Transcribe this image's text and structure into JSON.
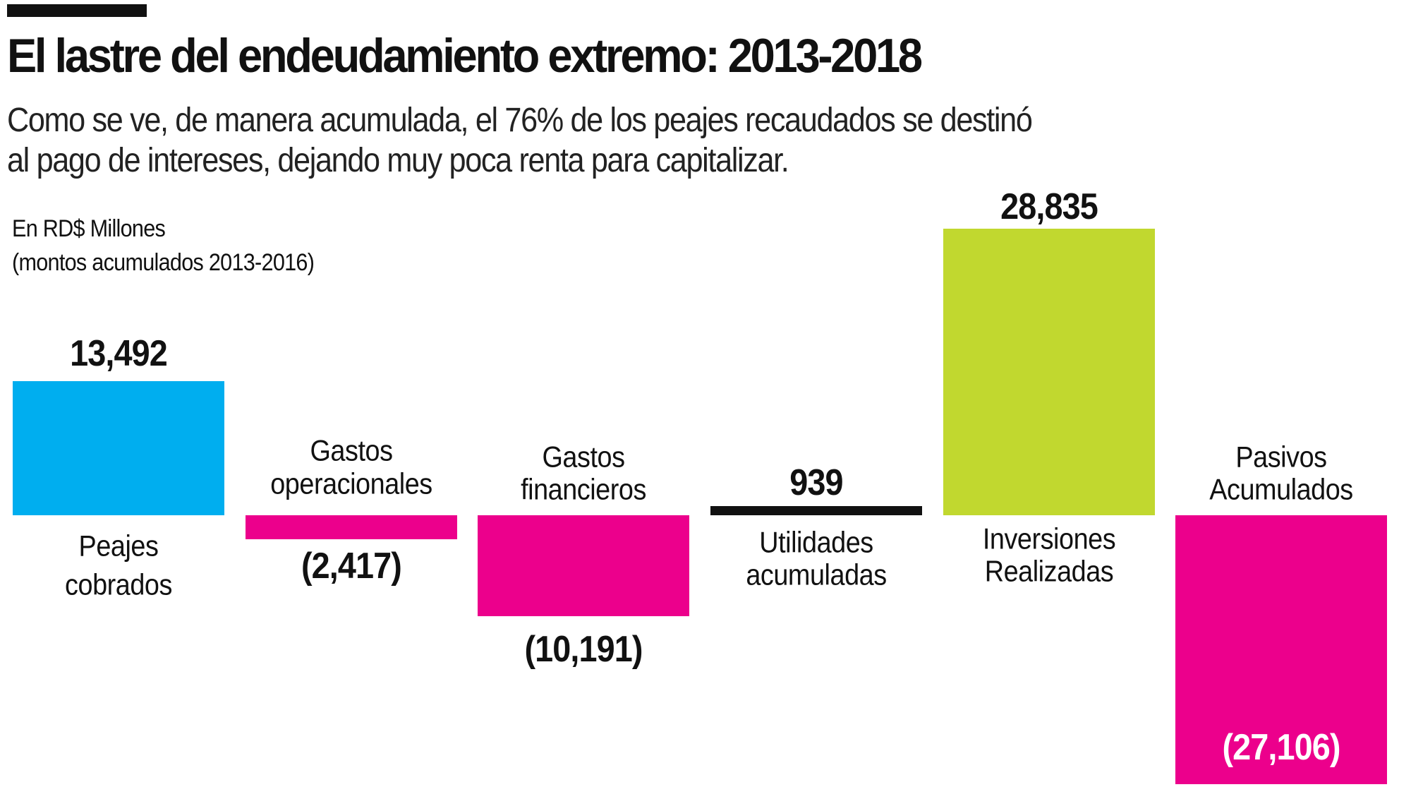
{
  "title": "El lastre del endeudamiento extremo: 2013-2018",
  "subtitle": [
    "Como se ve, de manera acumulada, el 76% de los peajes recaudados se destinó",
    "al pago de intereses, dejando muy poca renta para capitalizar."
  ],
  "units": [
    "En RD$ Millones",
    "(montos acumulados 2013-2016)"
  ],
  "chart_data": {
    "type": "bar",
    "categories": [
      [
        "Peajes",
        "cobrados"
      ],
      [
        "Gastos",
        "operacionales"
      ],
      [
        "Gastos",
        "financieros"
      ],
      [
        "Utilidades",
        "acumuladas"
      ],
      [
        "Inversiones",
        "Realizadas"
      ],
      [
        "Pasivos",
        "Acumulados"
      ]
    ],
    "values": [
      13492,
      -2417,
      -10191,
      939,
      28835,
      -27106
    ],
    "data_labels": [
      "13,492",
      "(2,417)",
      "(10,191)",
      "939",
      "28,835",
      "(27,106)"
    ],
    "colors": [
      "#00AEEF",
      "#EC008C",
      "#EC008C",
      "#111111",
      "#C1D82F",
      "#EC008C"
    ],
    "label_color_inside": "#FFFFFF",
    "grid": false,
    "legend": "none",
    "axes_visible": false
  }
}
